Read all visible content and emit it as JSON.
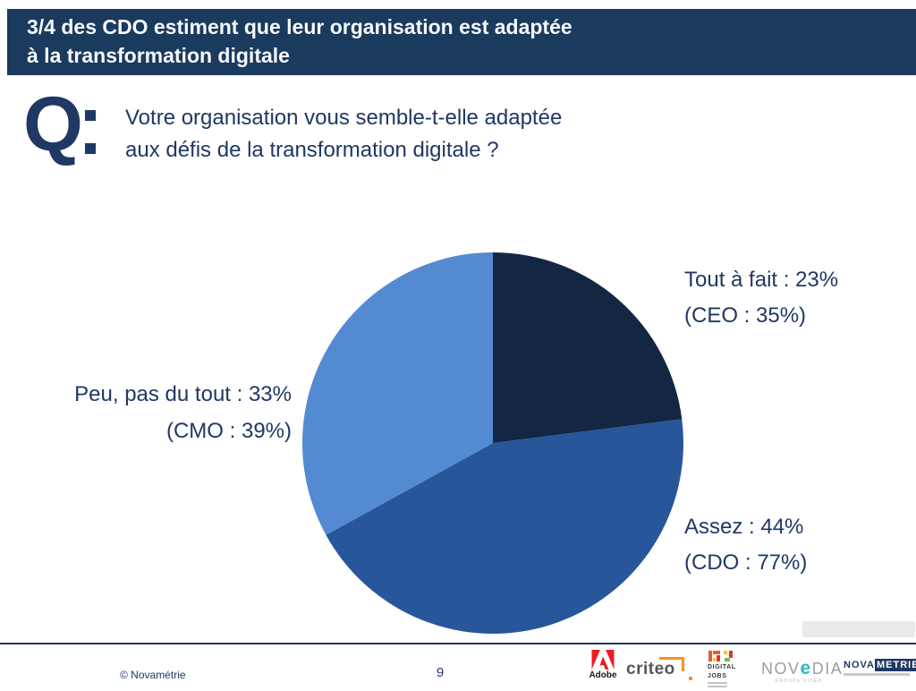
{
  "slide": {
    "title_line1": "3/4 des CDO estiment que leur organisation est adaptée",
    "title_line2": "à la transformation digitale",
    "question_glyph": "Q",
    "question_line1": "Votre organisation vous semble-t-elle adaptée",
    "question_line2": "aux défis de la transformation digitale ?"
  },
  "chart_data": {
    "type": "pie",
    "title": "Votre organisation vous semble-t-elle adaptée aux défis de la transformation digitale ?",
    "direction": "clockwise",
    "start_angle_deg": 0,
    "slices": [
      {
        "label": "Tout à fait",
        "value_pct": 23,
        "breakdown_label": "CEO",
        "breakdown_pct": 35,
        "color": "#132742"
      },
      {
        "label": "Assez",
        "value_pct": 44,
        "breakdown_label": "CDO",
        "breakdown_pct": 77,
        "color": "#27569a"
      },
      {
        "label": "Peu, pas du tout",
        "value_pct": 33,
        "breakdown_label": "CMO",
        "breakdown_pct": 39,
        "color": "#548ad2"
      }
    ],
    "legend_position": "outside-callouts"
  },
  "pie_labels": {
    "tout_a_fait": {
      "line1": "Tout à fait : 23%",
      "line2": "(CEO : 35%)"
    },
    "assez": {
      "line1": "Assez : 44%",
      "line2": "(CDO : 77%)"
    },
    "peu_pas_du_tout": {
      "line1": "Peu, pas du tout : 33%",
      "line2": "(CMO : 39%)"
    }
  },
  "footer": {
    "copyright": "© Novamétrie",
    "page_number": "9",
    "logos": {
      "adobe_label": "Adobe",
      "criteo_label": "criteo",
      "digital_jobs_line1": "DIGITAL",
      "digital_jobs_line2": "JOBS",
      "novedia_prefix": "NOV",
      "novedia_e": "e",
      "novedia_suffix": "DIA",
      "novedia_sub": "GROUPE VIDEO",
      "novametrie_part1": "NOVA",
      "novametrie_part2": "METRIE"
    }
  },
  "colors": {
    "header_bg": "#1a3a5e",
    "text_navy": "#1f3864",
    "rule_navy": "#22375c",
    "slice_dark": "#132742",
    "slice_medium": "#27569a",
    "slice_light": "#548ad2",
    "adobe_red": "#ed1c24",
    "criteo_orange": "#f7941d",
    "dj_orange": "#f05a28",
    "dj_red": "#e5332a",
    "dj_yellow": "#ffc20e",
    "dj_green": "#72bf44",
    "novedia_gray": "#9b9ea1",
    "novedia_teal": "#2bb6c9"
  }
}
